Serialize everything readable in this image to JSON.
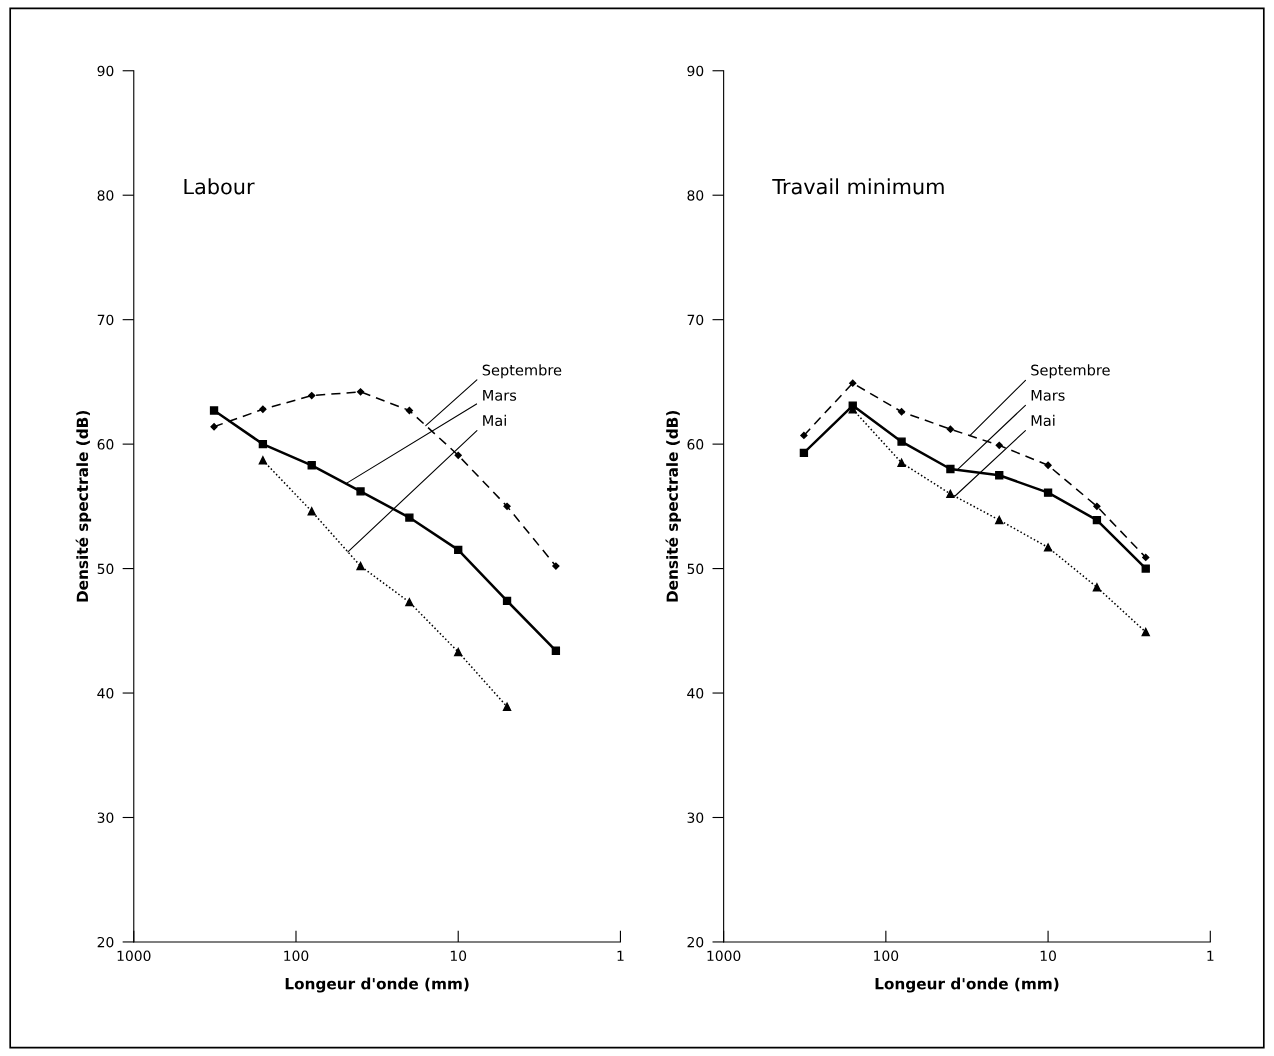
{
  "chart_data": [
    {
      "type": "line",
      "title": "Labour",
      "xlabel": "Longeur d'onde (mm)",
      "ylabel": "Densité spectrale (dB)",
      "log": "x",
      "xlim": [
        1000,
        1
      ],
      "xticks": [
        1000,
        100,
        10,
        1
      ],
      "ylim": [
        20,
        90
      ],
      "yticks": [
        20,
        30,
        40,
        50,
        60,
        70,
        80,
        90
      ],
      "grid": false,
      "legend": false,
      "series": [
        {
          "name": "Septembre",
          "color": "#000000",
          "marker": "diamond",
          "line_style": "dashed",
          "x": [
            320,
            160,
            80,
            40,
            20,
            10,
            5,
            2.5
          ],
          "values": [
            61.4,
            62.8,
            63.9,
            64.2,
            62.7,
            59.1,
            55.0,
            50.2
          ]
        },
        {
          "name": "Mars",
          "color": "#000000",
          "marker": "square",
          "line_style": "solid",
          "x": [
            320,
            160,
            80,
            40,
            20,
            10,
            5,
            2.5
          ],
          "values": [
            62.7,
            60.0,
            58.3,
            56.2,
            54.1,
            51.5,
            47.4,
            43.4
          ]
        },
        {
          "name": "Mai",
          "color": "#000000",
          "marker": "triangle",
          "line_style": "dotted",
          "x": [
            160,
            80,
            40,
            20,
            10,
            5
          ],
          "values": [
            58.7,
            54.6,
            50.2,
            47.3,
            43.3,
            38.9
          ]
        }
      ]
    },
    {
      "type": "line",
      "title": "Travail minimum",
      "xlabel": "Longeur d'onde (mm)",
      "ylabel": "Densité spectrale (dB)",
      "log": "x",
      "xlim": [
        1000,
        1
      ],
      "xticks": [
        1000,
        100,
        10,
        1
      ],
      "ylim": [
        20,
        90
      ],
      "yticks": [
        20,
        30,
        40,
        50,
        60,
        70,
        80,
        90
      ],
      "grid": false,
      "legend": false,
      "series": [
        {
          "name": "Septembre",
          "color": "#000000",
          "marker": "diamond",
          "line_style": "dashed",
          "x": [
            320,
            160,
            80,
            40,
            20,
            10,
            5,
            2.5
          ],
          "values": [
            60.7,
            64.9,
            62.6,
            61.2,
            59.9,
            58.3,
            55.0,
            50.9
          ]
        },
        {
          "name": "Mars",
          "color": "#000000",
          "marker": "square",
          "line_style": "solid",
          "x": [
            320,
            160,
            80,
            40,
            20,
            10,
            5,
            2.5
          ],
          "values": [
            59.3,
            63.1,
            60.2,
            58.0,
            57.5,
            56.1,
            53.9,
            50.0
          ]
        },
        {
          "name": "Mai",
          "color": "#000000",
          "marker": "triangle",
          "line_style": "dotted",
          "x": [
            160,
            80,
            40,
            20,
            10,
            5,
            2.5
          ],
          "values": [
            62.8,
            58.5,
            56.0,
            53.9,
            51.7,
            48.5,
            44.9
          ]
        }
      ]
    }
  ]
}
